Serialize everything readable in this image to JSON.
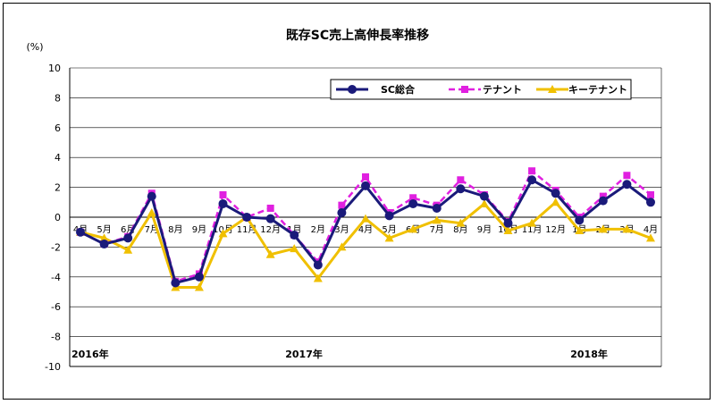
{
  "chart_data": {
    "type": "line",
    "title": "既存SC売上高伸長率推移",
    "ylabel": "(%)",
    "xlabel": "",
    "ylim": [
      -10,
      10
    ],
    "yticks": [
      10,
      8,
      6,
      4,
      2,
      0,
      -2,
      -4,
      -6,
      -8,
      -10
    ],
    "grid": true,
    "legend": "top-right",
    "categories": [
      "4月",
      "5月",
      "6月",
      "7月",
      "8月",
      "9月",
      "10月",
      "11月",
      "12月",
      "1月",
      "2月",
      "3月",
      "4月",
      "5月",
      "6月",
      "7月",
      "8月",
      "9月",
      "10月",
      "11月",
      "12月",
      "1月",
      "2月",
      "3月",
      "4月"
    ],
    "year_labels": [
      {
        "label": "2016年",
        "index": 0
      },
      {
        "label": "2017年",
        "index": 9
      },
      {
        "label": "2018年",
        "index": 21
      }
    ],
    "series": [
      {
        "name": "SC総合",
        "color": "#1a1a7a",
        "marker": "circle",
        "dash": false,
        "values": [
          -1.0,
          -1.8,
          -1.4,
          1.4,
          -4.4,
          -4.0,
          0.9,
          0.0,
          -0.1,
          -1.2,
          -3.2,
          0.3,
          2.1,
          0.1,
          0.9,
          0.6,
          1.9,
          1.4,
          -0.4,
          2.5,
          1.6,
          -0.2,
          1.1,
          2.2,
          1.0
        ]
      },
      {
        "name": "テナント",
        "color": "#e020e0",
        "marker": "square",
        "dash": true,
        "values": [
          -1.0,
          -1.8,
          -1.3,
          1.6,
          -4.3,
          -3.8,
          1.5,
          0.0,
          0.6,
          -1.2,
          -3.0,
          0.8,
          2.7,
          0.3,
          1.3,
          0.8,
          2.5,
          1.5,
          -0.3,
          3.1,
          1.8,
          0.0,
          1.4,
          2.8,
          1.5
        ]
      },
      {
        "name": "キーテナント",
        "color": "#f0c000",
        "marker": "triangle",
        "dash": false,
        "values": [
          -1.0,
          -1.4,
          -2.2,
          0.3,
          -4.7,
          -4.7,
          -1.1,
          0.0,
          -2.5,
          -2.1,
          -4.1,
          -2.0,
          -0.1,
          -1.4,
          -0.8,
          -0.2,
          -0.4,
          0.9,
          -0.9,
          -0.4,
          1.0,
          -0.9,
          -0.8,
          -0.8,
          -1.4
        ]
      }
    ]
  }
}
